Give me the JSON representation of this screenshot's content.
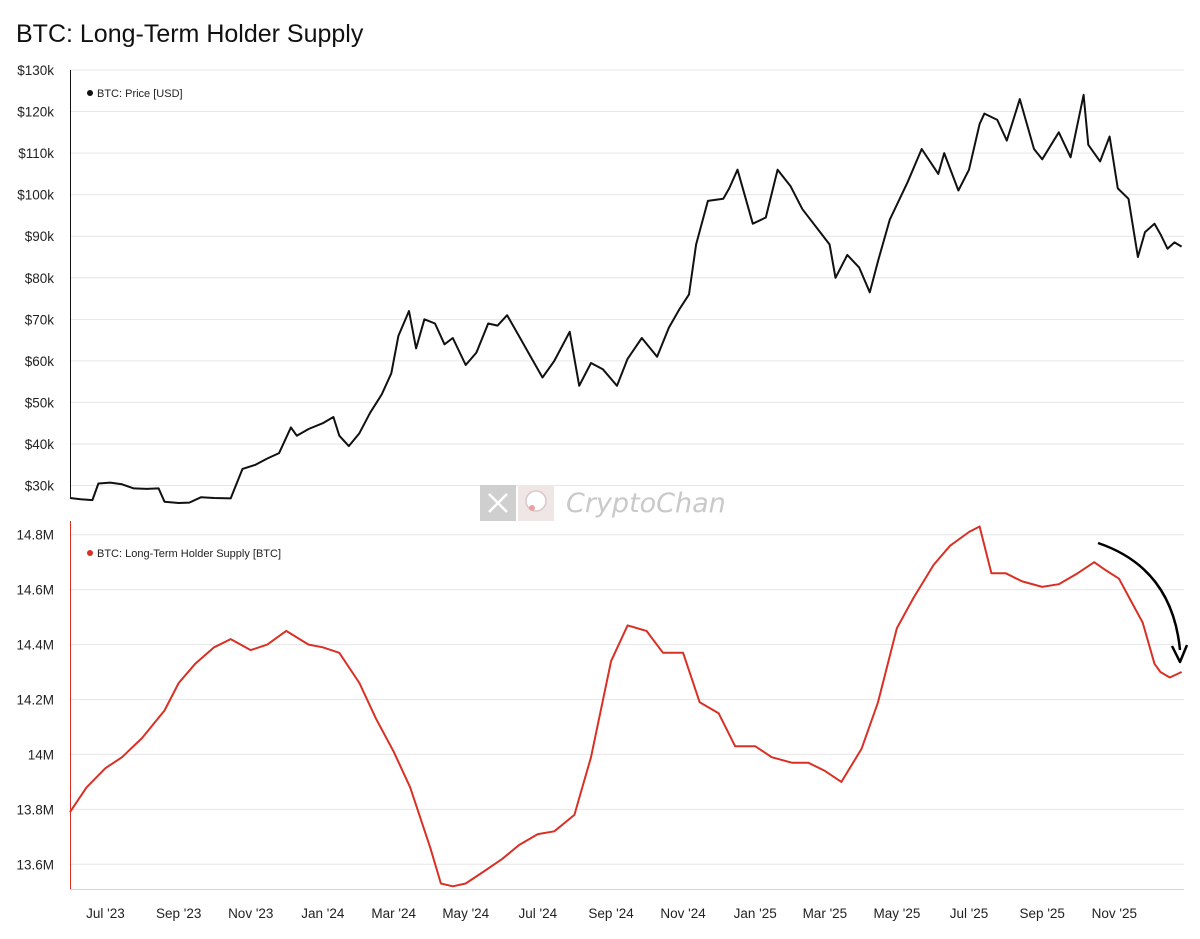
{
  "title": "BTC:  Long-Term Holder Supply",
  "watermark": {
    "text": "CryptoChan",
    "x_icon": "x-logo-icon",
    "avatar_icon": "anime-avatar-icon"
  },
  "colors": {
    "price": "#111111",
    "supply": "#d93025",
    "grid": "#e6e6e6",
    "arrow": "#000000"
  },
  "chart_data": [
    {
      "type": "line",
      "legend": "BTC: Price [USD]",
      "legend_placement": "top-left",
      "grid": true,
      "ylim": [
        27000,
        130000
      ],
      "yticks": [
        30000,
        40000,
        50000,
        60000,
        70000,
        80000,
        90000,
        100000,
        110000,
        120000,
        130000
      ],
      "ytick_labels": [
        "$30k",
        "$40k",
        "$50k",
        "$60k",
        "$70k",
        "$80k",
        "$90k",
        "$100k",
        "$110k",
        "$120k",
        "$130k"
      ],
      "series": [
        {
          "name": "BTC: Price [USD]",
          "x": [
            "2023-06-01",
            "2023-06-10",
            "2023-06-20",
            "2023-06-25",
            "2023-07-05",
            "2023-07-15",
            "2023-07-25",
            "2023-08-05",
            "2023-08-15",
            "2023-08-20",
            "2023-09-01",
            "2023-09-10",
            "2023-09-20",
            "2023-10-01",
            "2023-10-15",
            "2023-10-25",
            "2023-11-05",
            "2023-11-15",
            "2023-11-25",
            "2023-12-05",
            "2023-12-10",
            "2023-12-20",
            "2024-01-01",
            "2024-01-10",
            "2024-01-15",
            "2024-01-23",
            "2024-02-01",
            "2024-02-10",
            "2024-02-20",
            "2024-02-28",
            "2024-03-05",
            "2024-03-14",
            "2024-03-20",
            "2024-03-27",
            "2024-04-05",
            "2024-04-13",
            "2024-04-20",
            "2024-05-01",
            "2024-05-10",
            "2024-05-20",
            "2024-05-28",
            "2024-06-05",
            "2024-06-15",
            "2024-06-25",
            "2024-07-05",
            "2024-07-15",
            "2024-07-28",
            "2024-08-05",
            "2024-08-15",
            "2024-08-25",
            "2024-09-06",
            "2024-09-15",
            "2024-09-27",
            "2024-10-10",
            "2024-10-20",
            "2024-10-29",
            "2024-11-06",
            "2024-11-12",
            "2024-11-22",
            "2024-12-05",
            "2024-12-10",
            "2024-12-17",
            "2024-12-30",
            "2025-01-10",
            "2025-01-20",
            "2025-01-31",
            "2025-02-10",
            "2025-02-25",
            "2025-03-05",
            "2025-03-10",
            "2025-03-20",
            "2025-03-30",
            "2025-04-08",
            "2025-04-15",
            "2025-04-25",
            "2025-05-10",
            "2025-05-22",
            "2025-06-05",
            "2025-06-10",
            "2025-06-22",
            "2025-07-01",
            "2025-07-10",
            "2025-07-14",
            "2025-07-25",
            "2025-08-02",
            "2025-08-13",
            "2025-08-25",
            "2025-09-01",
            "2025-09-15",
            "2025-09-25",
            "2025-10-06",
            "2025-10-10",
            "2025-10-20",
            "2025-10-28",
            "2025-11-04",
            "2025-11-13",
            "2025-11-21",
            "2025-11-27",
            "2025-12-05",
            "2025-12-10",
            "2025-12-16",
            "2025-12-22",
            "2025-12-28"
          ],
          "y": [
            27000,
            26700,
            26500,
            30500,
            30700,
            30300,
            29300,
            29200,
            29300,
            26100,
            25800,
            25900,
            27200,
            27000,
            26900,
            34000,
            35000,
            36500,
            37800,
            44000,
            42000,
            43600,
            45000,
            46500,
            42000,
            39500,
            42600,
            47500,
            52000,
            57000,
            66000,
            72000,
            63000,
            70000,
            69000,
            64000,
            65500,
            59000,
            62000,
            69000,
            68500,
            71000,
            66000,
            61000,
            56000,
            60000,
            67000,
            54000,
            59500,
            58000,
            54000,
            60500,
            65500,
            61000,
            68000,
            72500,
            76000,
            88000,
            98500,
            99000,
            101500,
            106000,
            93000,
            94500,
            106000,
            102000,
            96500,
            91000,
            88000,
            80000,
            85500,
            82500,
            76500,
            84000,
            94000,
            103000,
            111000,
            105000,
            110000,
            101000,
            106000,
            117000,
            119500,
            118000,
            113000,
            123000,
            111000,
            108500,
            115000,
            109000,
            124000,
            112000,
            108000,
            114000,
            101500,
            99000,
            85000,
            91000,
            93000,
            90500,
            87000,
            88500,
            87500
          ]
        }
      ]
    },
    {
      "type": "line",
      "legend": "BTC: Long-Term Holder Supply [BTC]",
      "legend_placement": "top-left",
      "grid": true,
      "ylim": [
        13510000,
        14850000
      ],
      "yticks": [
        13600000,
        13800000,
        14000000,
        14200000,
        14400000,
        14600000,
        14800000
      ],
      "ytick_labels": [
        "13.6M",
        "13.8M",
        "14M",
        "14.2M",
        "14.4M",
        "14.6M",
        "14.8M"
      ],
      "annotation": "curved arrow pointing down",
      "series": [
        {
          "name": "BTC: Long-Term Holder Supply [BTC]",
          "x": [
            "2023-06-01",
            "2023-06-15",
            "2023-07-01",
            "2023-07-15",
            "2023-08-01",
            "2023-08-20",
            "2023-09-01",
            "2023-09-15",
            "2023-10-01",
            "2023-10-15",
            "2023-11-01",
            "2023-11-15",
            "2023-12-01",
            "2023-12-20",
            "2024-01-01",
            "2024-01-15",
            "2024-02-01",
            "2024-02-15",
            "2024-03-01",
            "2024-03-15",
            "2024-04-01",
            "2024-04-10",
            "2024-04-20",
            "2024-05-01",
            "2024-05-15",
            "2024-06-01",
            "2024-06-15",
            "2024-07-01",
            "2024-07-15",
            "2024-08-01",
            "2024-08-15",
            "2024-09-01",
            "2024-09-15",
            "2024-10-01",
            "2024-10-15",
            "2024-11-01",
            "2024-11-15",
            "2024-12-01",
            "2024-12-15",
            "2025-01-01",
            "2025-01-15",
            "2025-02-01",
            "2025-02-15",
            "2025-03-01",
            "2025-03-15",
            "2025-04-01",
            "2025-04-15",
            "2025-05-01",
            "2025-05-15",
            "2025-06-01",
            "2025-06-15",
            "2025-07-01",
            "2025-07-10",
            "2025-07-20",
            "2025-08-01",
            "2025-08-15",
            "2025-09-01",
            "2025-09-15",
            "2025-10-01",
            "2025-10-15",
            "2025-10-25",
            "2025-11-05",
            "2025-11-15",
            "2025-11-25",
            "2025-12-05",
            "2025-12-10",
            "2025-12-18",
            "2025-12-28"
          ],
          "y": [
            13790000,
            13880000,
            13950000,
            13990000,
            14060000,
            14160000,
            14260000,
            14330000,
            14390000,
            14420000,
            14380000,
            14400000,
            14450000,
            14400000,
            14390000,
            14370000,
            14260000,
            14130000,
            14010000,
            13880000,
            13660000,
            13530000,
            13520000,
            13530000,
            13570000,
            13620000,
            13670000,
            13710000,
            13720000,
            13780000,
            13990000,
            14340000,
            14470000,
            14450000,
            14370000,
            14370000,
            14190000,
            14150000,
            14030000,
            14030000,
            13990000,
            13970000,
            13970000,
            13940000,
            13900000,
            14020000,
            14190000,
            14460000,
            14570000,
            14690000,
            14760000,
            14810000,
            14830000,
            14660000,
            14660000,
            14630000,
            14610000,
            14620000,
            14660000,
            14700000,
            14670000,
            14640000,
            14560000,
            14480000,
            14330000,
            14300000,
            14280000,
            14300000
          ]
        }
      ]
    }
  ],
  "x_axis": {
    "tick_dates": [
      "2023-07-01",
      "2023-09-01",
      "2023-11-01",
      "2024-01-01",
      "2024-03-01",
      "2024-05-01",
      "2024-07-01",
      "2024-09-01",
      "2024-11-01",
      "2025-01-01",
      "2025-03-01",
      "2025-05-01",
      "2025-07-01",
      "2025-09-01",
      "2025-11-01"
    ],
    "tick_labels": [
      "Jul '23",
      "Sep '23",
      "Nov '23",
      "Jan '24",
      "Mar '24",
      "May '24",
      "Jul '24",
      "Sep '24",
      "Nov '24",
      "Jan '25",
      "Mar '25",
      "May '25",
      "Jul '25",
      "Sep '25",
      "Nov '25"
    ]
  }
}
